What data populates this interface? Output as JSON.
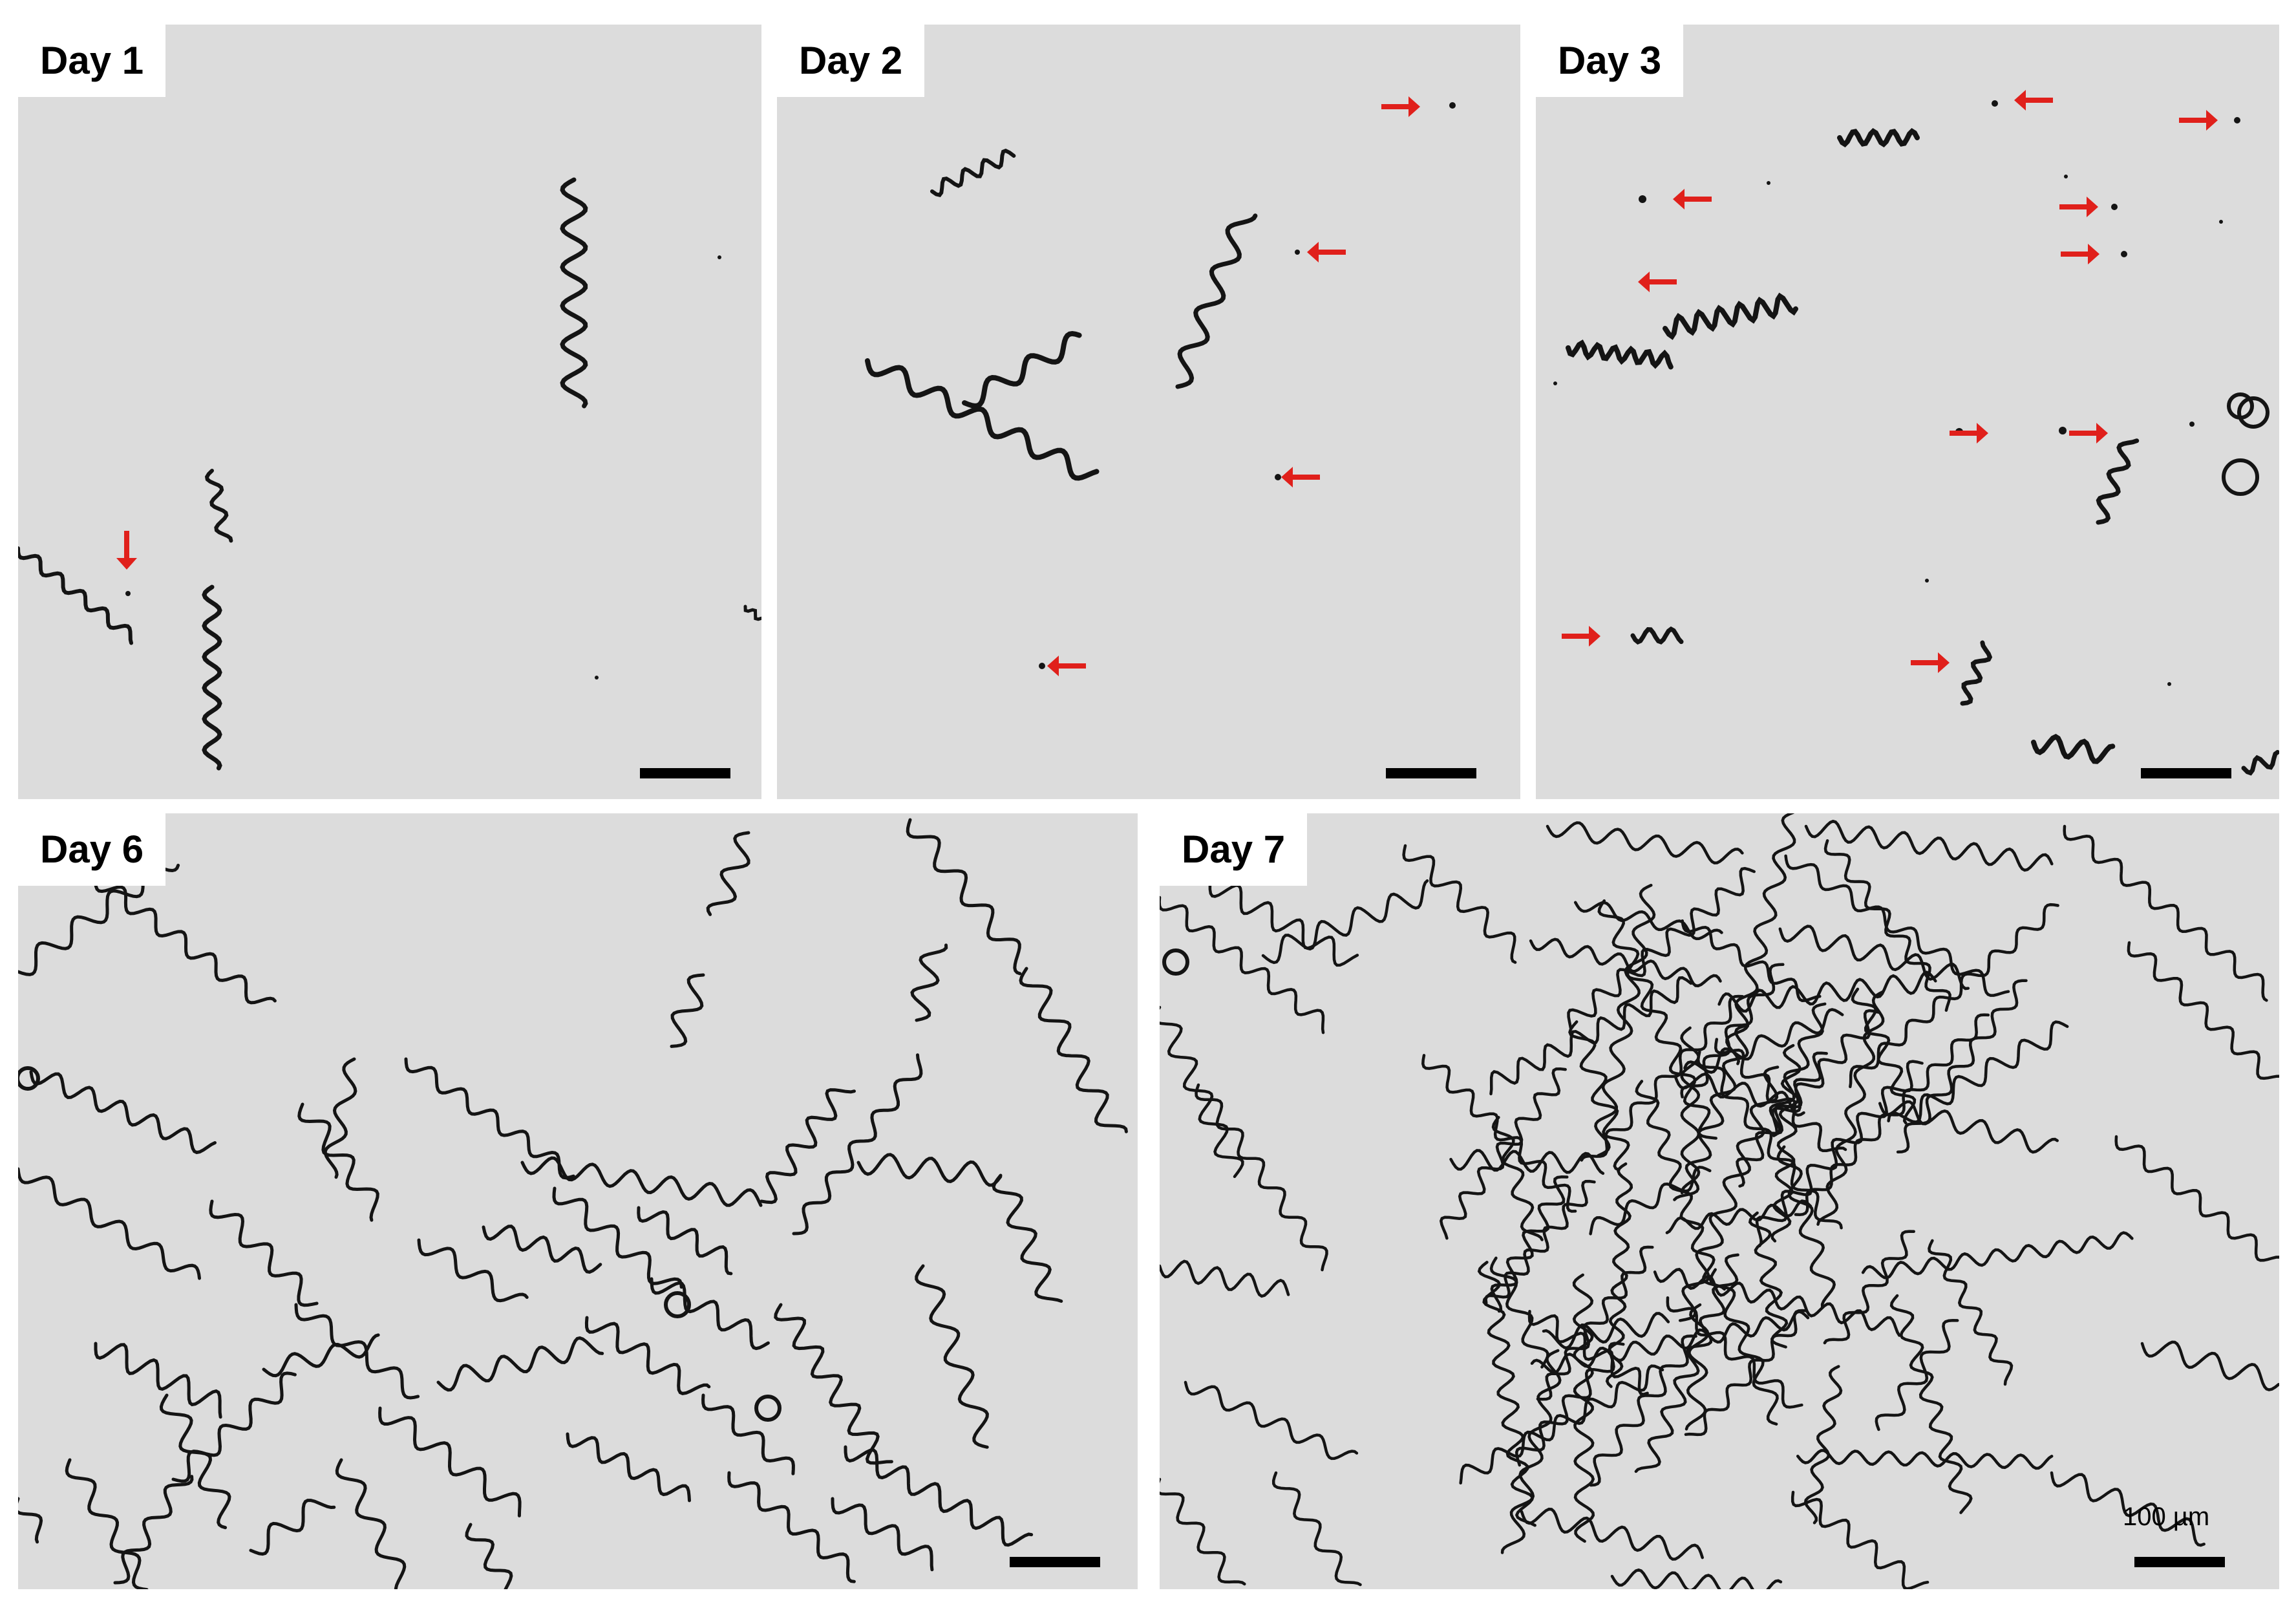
{
  "panels": {
    "p1": {
      "label": "Day 1"
    },
    "p2": {
      "label": "Day 2"
    },
    "p3": {
      "label": "Day 3"
    },
    "p6": {
      "label": "Day 6"
    },
    "p7": {
      "label": "Day 7",
      "scale_text": "100 µm"
    }
  },
  "colors": {
    "background": "#dcdcdc",
    "filament": "#141414",
    "arrow": "#e0201b"
  }
}
